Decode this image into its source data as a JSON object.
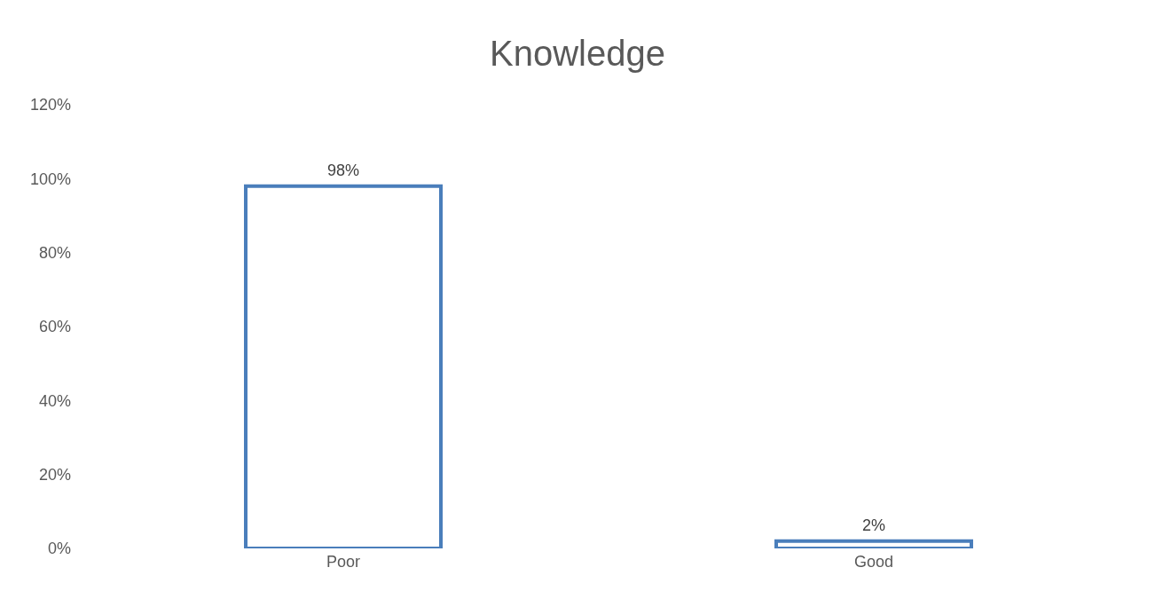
{
  "chart_data": {
    "type": "bar",
    "title": "Knowledge",
    "categories": [
      "Poor",
      "Good"
    ],
    "values": [
      98,
      2
    ],
    "value_labels": [
      "98%",
      "2%"
    ],
    "color": "#4a7ebb",
    "ylim": [
      0,
      120
    ],
    "yticks": [
      {
        "value": 0,
        "label": "0%"
      },
      {
        "value": 20,
        "label": "20%"
      },
      {
        "value": 40,
        "label": "40%"
      },
      {
        "value": 60,
        "label": "60%"
      },
      {
        "value": 80,
        "label": "80%"
      },
      {
        "value": 100,
        "label": "100%"
      },
      {
        "value": 120,
        "label": "120%"
      }
    ],
    "grid": false,
    "legend": false
  }
}
